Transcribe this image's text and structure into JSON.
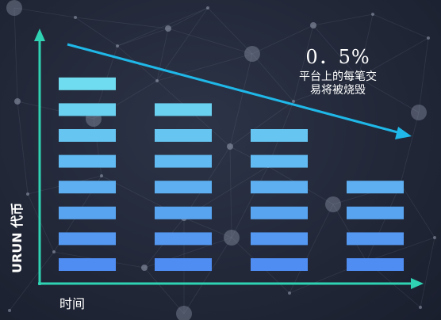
{
  "annotation": {
    "percent": "0．5%",
    "line1": "平台上的每笔交",
    "line2": "易将被烧毁"
  },
  "axes": {
    "x_label": "时间",
    "y_label": "URUN 代币"
  },
  "columns": [
    {
      "blocks": 8
    },
    {
      "blocks": 7
    },
    {
      "blocks": 6
    },
    {
      "blocks": 4
    }
  ],
  "colors": {
    "axis": "#2fd3b3",
    "trend_arrow": "#1fb8e8",
    "block_top": "#6fdcf0",
    "block_bottom": "#4f8df2"
  }
}
